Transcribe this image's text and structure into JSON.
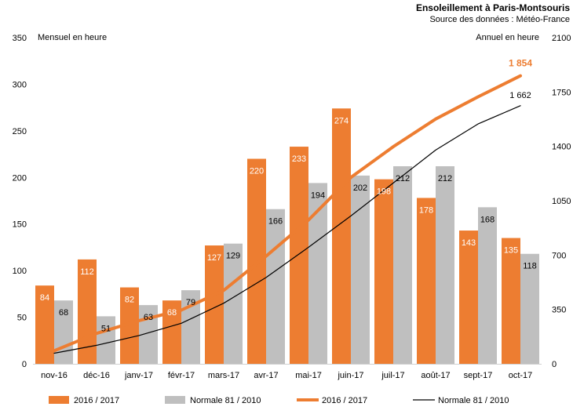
{
  "chart_data": {
    "type": "bar",
    "title": "Ensoleillement à Paris-Montsouris",
    "subtitle": "Source des données : Météo-France",
    "ylabel_left": "Mensuel en heure",
    "ylabel_right": "Annuel en heure",
    "ylim_left": [
      0,
      350
    ],
    "ylim_right": [
      0,
      2100
    ],
    "yticks_left": [
      0,
      50,
      100,
      150,
      200,
      250,
      300,
      350
    ],
    "yticks_right": [
      0,
      350,
      700,
      1050,
      1400,
      1750,
      2100
    ],
    "categories": [
      "nov-16",
      "déc-16",
      "janv-17",
      "févr-17",
      "mars-17",
      "avr-17",
      "mai-17",
      "juin-17",
      "juil-17",
      "août-17",
      "sept-17",
      "oct-17"
    ],
    "series": [
      {
        "name": "2016 / 2017",
        "kind": "bar",
        "axis": "left",
        "color": "#ED7D31",
        "values": [
          84,
          112,
          82,
          68,
          127,
          220,
          233,
          274,
          198,
          178,
          143,
          135
        ]
      },
      {
        "name": "Normale 81 / 2010",
        "kind": "bar",
        "axis": "left",
        "color": "#BFBFBF",
        "values": [
          68,
          51,
          63,
          79,
          129,
          166,
          194,
          202,
          212,
          212,
          168,
          118
        ]
      },
      {
        "name": "2016 / 2017",
        "kind": "line",
        "axis": "right",
        "color": "#ED7D31",
        "values": [
          84,
          196,
          278,
          346,
          473,
          693,
          926,
          1200,
          1398,
          1576,
          1719,
          1854
        ],
        "end_label": "1 854"
      },
      {
        "name": "Normale 81 / 2010",
        "kind": "line",
        "axis": "right",
        "color": "#000000",
        "values": [
          68,
          119,
          182,
          261,
          390,
          556,
          750,
          952,
          1164,
          1376,
          1544,
          1662
        ],
        "end_label": "1 662"
      }
    ]
  }
}
